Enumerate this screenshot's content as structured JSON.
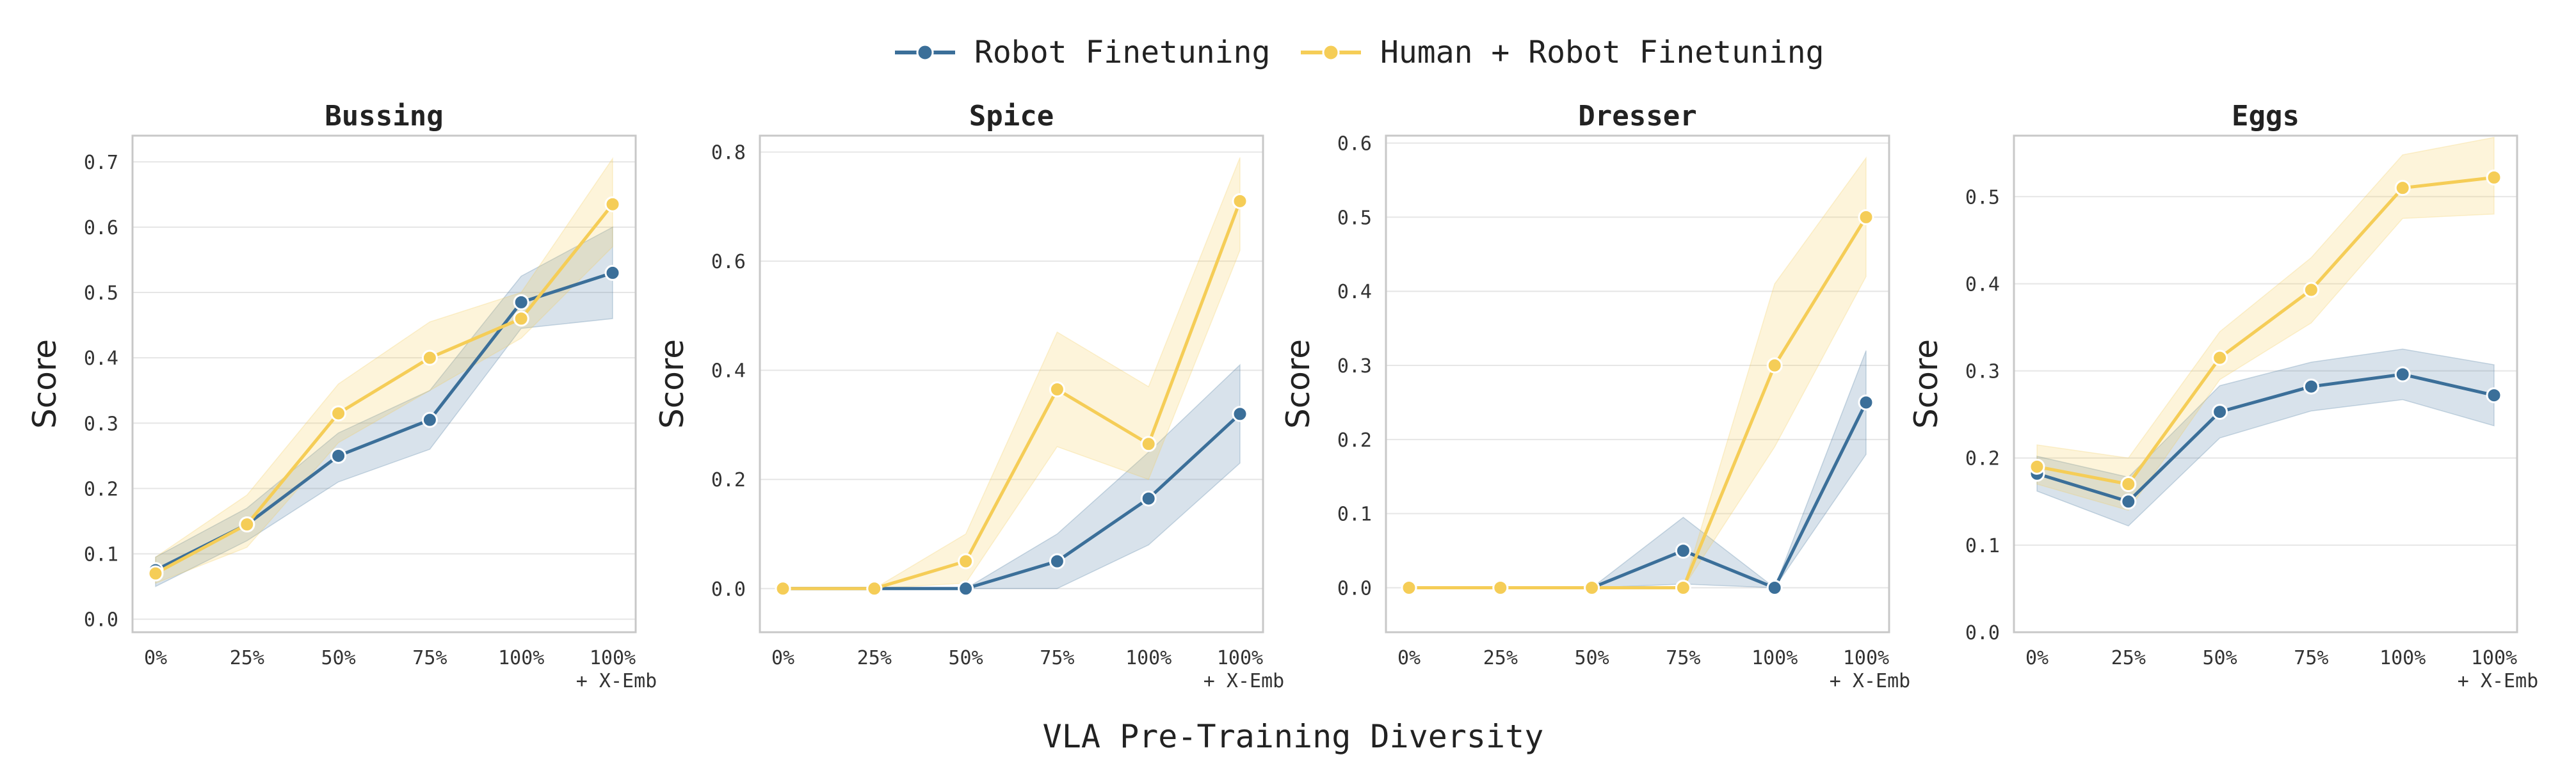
{
  "legend": {
    "robot": "Robot Finetuning",
    "human": "Human + Robot Finetuning"
  },
  "colors": {
    "robot": "#3b6f99",
    "human": "#f5cd57",
    "grid": "#e6e6e6",
    "frame": "#c8c8c8"
  },
  "xlabel": "VLA Pre-Training Diversity",
  "chart_data": [
    {
      "type": "line",
      "title": "Bussing",
      "ylabel": "Score",
      "categories": [
        "0%",
        "25%",
        "50%",
        "75%",
        "100%",
        "100%\n+ X-Emb"
      ],
      "ylim": [
        -0.02,
        0.74
      ],
      "yticks": [
        0.0,
        0.1,
        0.2,
        0.3,
        0.4,
        0.5,
        0.6,
        0.7
      ],
      "series": [
        {
          "name": "Robot Finetuning",
          "values": [
            0.075,
            0.145,
            0.25,
            0.305,
            0.485,
            0.53
          ],
          "lower": [
            0.05,
            0.12,
            0.21,
            0.26,
            0.445,
            0.46
          ],
          "upper": [
            0.095,
            0.17,
            0.285,
            0.35,
            0.525,
            0.6
          ]
        },
        {
          "name": "Human + Robot Finetuning",
          "values": [
            0.07,
            0.145,
            0.315,
            0.4,
            0.46,
            0.635
          ],
          "lower": [
            0.055,
            0.11,
            0.27,
            0.35,
            0.43,
            0.57
          ],
          "upper": [
            0.095,
            0.19,
            0.36,
            0.455,
            0.5,
            0.705
          ]
        }
      ]
    },
    {
      "type": "line",
      "title": "Spice",
      "ylabel": "Score",
      "categories": [
        "0%",
        "25%",
        "50%",
        "75%",
        "100%",
        "100%\n+ X-Emb"
      ],
      "ylim": [
        -0.08,
        0.83
      ],
      "yticks": [
        0.0,
        0.2,
        0.4,
        0.6,
        0.8
      ],
      "series": [
        {
          "name": "Robot Finetuning",
          "values": [
            0.0,
            0.0,
            0.0,
            0.05,
            0.165,
            0.32
          ],
          "lower": [
            0.0,
            0.0,
            0.0,
            0.0,
            0.08,
            0.23
          ],
          "upper": [
            0.0,
            0.0,
            0.0,
            0.1,
            0.25,
            0.41
          ]
        },
        {
          "name": "Human + Robot Finetuning",
          "values": [
            0.0,
            0.0,
            0.05,
            0.365,
            0.265,
            0.71
          ],
          "lower": [
            0.0,
            0.0,
            0.01,
            0.26,
            0.2,
            0.62
          ],
          "upper": [
            0.0,
            0.0,
            0.1,
            0.47,
            0.37,
            0.79
          ]
        }
      ]
    },
    {
      "type": "line",
      "title": "Dresser",
      "ylabel": "Score",
      "categories": [
        "0%",
        "25%",
        "50%",
        "75%",
        "100%",
        "100%\n+ X-Emb"
      ],
      "ylim": [
        -0.06,
        0.61
      ],
      "yticks": [
        0.0,
        0.1,
        0.2,
        0.3,
        0.4,
        0.5,
        0.6
      ],
      "series": [
        {
          "name": "Robot Finetuning",
          "values": [
            0.0,
            0.0,
            0.0,
            0.05,
            0.0,
            0.25
          ],
          "lower": [
            0.0,
            0.0,
            0.0,
            0.005,
            0.0,
            0.18
          ],
          "upper": [
            0.0,
            0.0,
            0.0,
            0.095,
            0.0,
            0.32
          ]
        },
        {
          "name": "Human + Robot Finetuning",
          "values": [
            0.0,
            0.0,
            0.0,
            0.0,
            0.3,
            0.5
          ],
          "lower": [
            0.0,
            0.0,
            0.0,
            0.0,
            0.19,
            0.42
          ],
          "upper": [
            0.0,
            0.0,
            0.0,
            0.0,
            0.41,
            0.58
          ]
        }
      ]
    },
    {
      "type": "line",
      "title": "Eggs",
      "ylabel": "Score",
      "categories": [
        "0%",
        "25%",
        "50%",
        "75%",
        "100%",
        "100%\n+ X-Emb"
      ],
      "ylim": [
        0.0,
        0.57
      ],
      "yticks": [
        0.0,
        0.1,
        0.2,
        0.3,
        0.4,
        0.5
      ],
      "series": [
        {
          "name": "Robot Finetuning",
          "values": [
            0.182,
            0.15,
            0.253,
            0.282,
            0.296,
            0.272
          ],
          "lower": [
            0.162,
            0.122,
            0.223,
            0.254,
            0.267,
            0.237
          ],
          "upper": [
            0.202,
            0.178,
            0.283,
            0.31,
            0.325,
            0.307
          ]
        },
        {
          "name": "Human + Robot Finetuning",
          "values": [
            0.19,
            0.17,
            0.315,
            0.393,
            0.51,
            0.522
          ],
          "lower": [
            0.17,
            0.14,
            0.29,
            0.355,
            0.475,
            0.48
          ],
          "upper": [
            0.215,
            0.2,
            0.345,
            0.43,
            0.548,
            0.568
          ]
        }
      ]
    }
  ]
}
